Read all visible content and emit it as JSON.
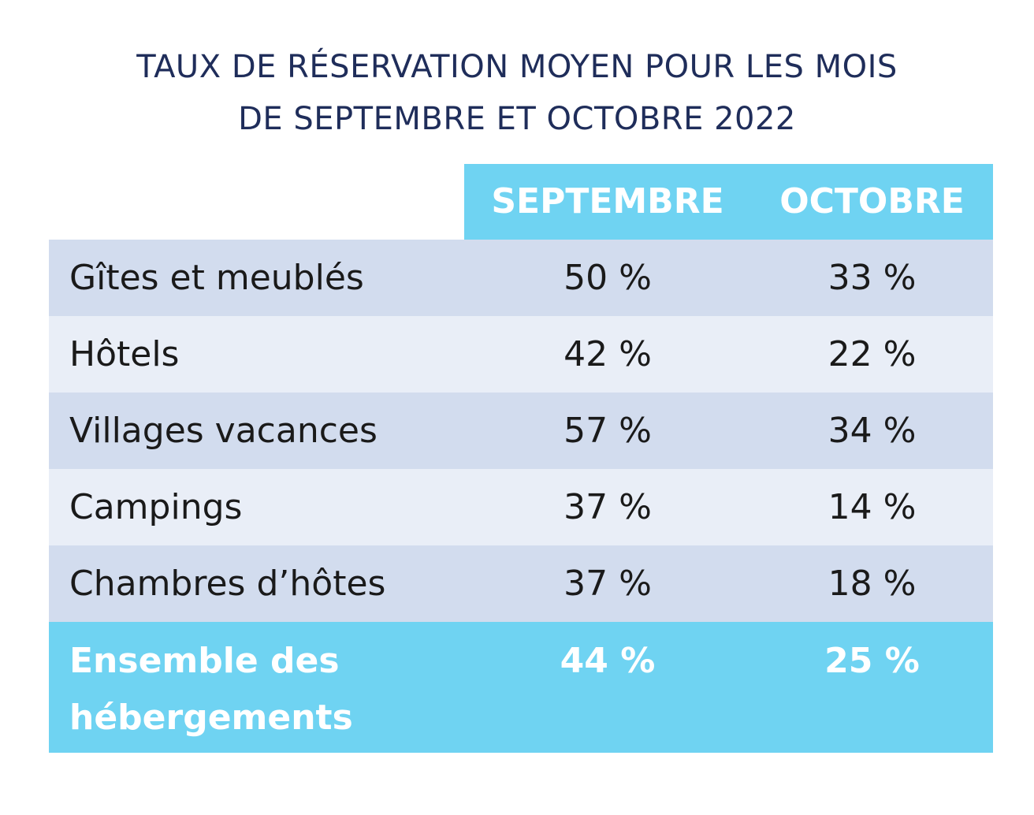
{
  "chart_data": {
    "type": "table",
    "title": [
      "TAUX DE RÉSERVATION MOYEN POUR LES MOIS",
      "DE SEPTEMBRE ET OCTOBRE 2022"
    ],
    "columns": [
      "SEPTEMBRE",
      "OCTOBRE"
    ],
    "rows": [
      {
        "label": "Gîtes et meublés",
        "values": [
          "50 %",
          "33 %"
        ]
      },
      {
        "label": "Hôtels",
        "values": [
          "42 %",
          "22 %"
        ]
      },
      {
        "label": "Villages vacances",
        "values": [
          "57 %",
          "34 %"
        ]
      },
      {
        "label": "Campings",
        "values": [
          "37 %",
          "14 %"
        ]
      },
      {
        "label": "Chambres d’hôtes",
        "values": [
          "37 %",
          "18 %"
        ]
      }
    ],
    "total": {
      "label": "Ensemble des hébergements",
      "values": [
        "44 %",
        "25 %"
      ]
    },
    "colors": {
      "title": "#1f2d5a",
      "header": "#6fd3f2",
      "row_dark": "#d2dcee",
      "row_light": "#e9eef7",
      "total": "#6fd3f2"
    }
  }
}
